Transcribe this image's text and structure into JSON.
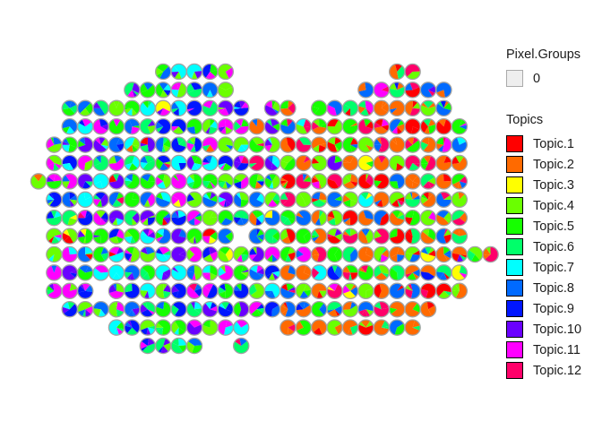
{
  "chart_data": {
    "type": "scatter",
    "subtype": "spatial-pie-glyphs",
    "title": "",
    "xlabel": "",
    "ylabel": "",
    "legend_position": "right",
    "grid": false,
    "pixel_groups_legend": {
      "title": "Pixel.Groups",
      "entries": [
        {
          "label": "0",
          "fill": "#eeeeee",
          "outline": "#aaaaaa"
        }
      ]
    },
    "topics_legend": {
      "title": "Topics",
      "entries": [
        {
          "label": "Topic.1",
          "color": "#FF0000"
        },
        {
          "label": "Topic.2",
          "color": "#FF6A00"
        },
        {
          "label": "Topic.3",
          "color": "#FFFF00"
        },
        {
          "label": "Topic.4",
          "color": "#6AFF00"
        },
        {
          "label": "Topic.5",
          "color": "#16FF00"
        },
        {
          "label": "Topic.6",
          "color": "#00FF6A"
        },
        {
          "label": "Topic.7",
          "color": "#00FFFF"
        },
        {
          "label": "Topic.8",
          "color": "#006AFF"
        },
        {
          "label": "Topic.9",
          "color": "#0016FF"
        },
        {
          "label": "Topic.10",
          "color": "#6A00FF"
        },
        {
          "label": "Topic.11",
          "color": "#FF00FF"
        },
        {
          "label": "Topic.12",
          "color": "#FF006A"
        }
      ]
    },
    "spots": {
      "pixel_group": "0",
      "rows": [
        {
          "row": 1,
          "cols": [
            [
              9,
              13
            ],
            [
              24,
              25
            ]
          ]
        },
        {
          "row": 2,
          "cols": [
            [
              7,
              13
            ],
            [
              22,
              27
            ]
          ]
        },
        {
          "row": 3,
          "cols": [
            [
              3,
              14
            ],
            [
              16,
              17
            ],
            [
              19,
              27
            ]
          ]
        },
        {
          "row": 4,
          "cols": [
            [
              3,
              28
            ]
          ]
        },
        {
          "row": 5,
          "cols": [
            [
              2,
              28
            ]
          ]
        },
        {
          "row": 6,
          "cols": [
            [
              2,
              28
            ]
          ]
        },
        {
          "row": 7,
          "cols": [
            [
              1,
              28
            ]
          ]
        },
        {
          "row": 8,
          "cols": [
            [
              2,
              28
            ]
          ]
        },
        {
          "row": 9,
          "cols": [
            [
              2,
              28
            ]
          ]
        },
        {
          "row": 10,
          "cols": [
            [
              2,
              13
            ],
            [
              15,
              28
            ]
          ]
        },
        {
          "row": 11,
          "cols": [
            [
              2,
              30
            ]
          ]
        },
        {
          "row": 12,
          "cols": [
            [
              2,
              28
            ]
          ]
        },
        {
          "row": 13,
          "cols": [
            [
              2,
              4
            ],
            [
              6,
              28
            ]
          ]
        },
        {
          "row": 14,
          "cols": [
            [
              3,
              26
            ]
          ]
        },
        {
          "row": 15,
          "cols": [
            [
              6,
              14
            ],
            [
              17,
              25
            ]
          ]
        },
        {
          "row": 16,
          "cols": [
            [
              8,
              11
            ],
            [
              14,
              14
            ]
          ]
        }
      ],
      "dominant_topics_by_region": {
        "left_section": [
          "Topic.8",
          "Topic.4",
          "Topic.10",
          "Topic.11",
          "Topic.7"
        ],
        "right_section": [
          "Topic.2",
          "Topic.4",
          "Topic.8",
          "Topic.6"
        ]
      }
    }
  }
}
